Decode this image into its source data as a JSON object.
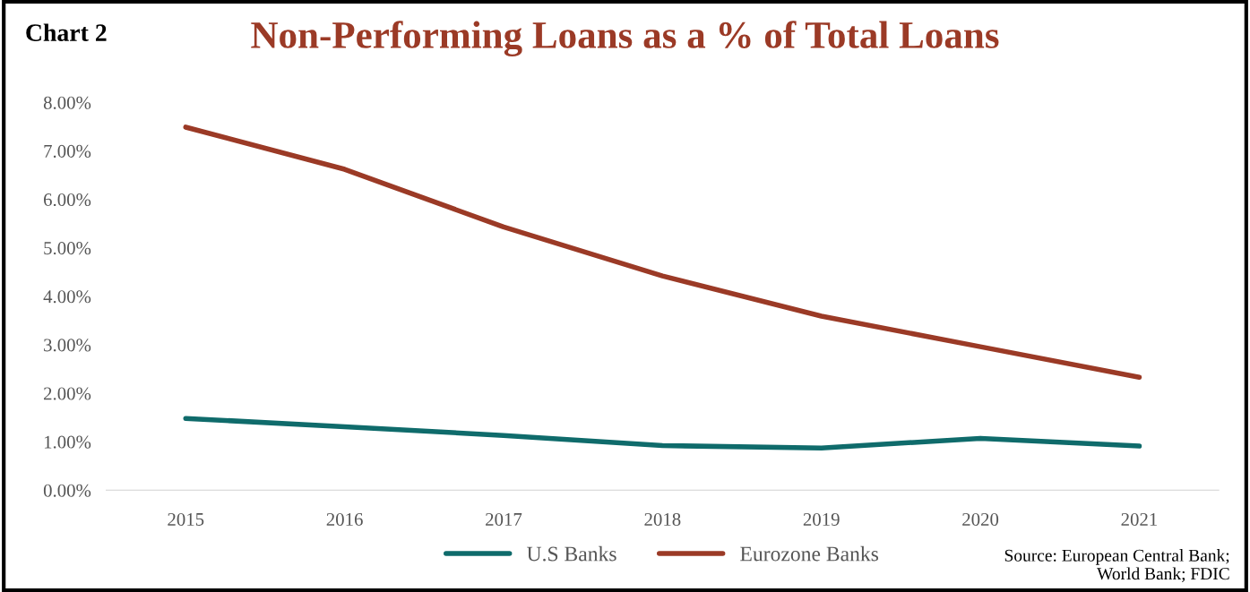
{
  "chart_data": {
    "type": "line",
    "title": "Non-Performing Loans as a % of Total Loans",
    "categories": [
      "2015",
      "2016",
      "2017",
      "2018",
      "2019",
      "2020",
      "2021"
    ],
    "series": [
      {
        "name": "U.S Banks",
        "color": "#0f6b6b",
        "values": [
          1.48,
          1.31,
          1.13,
          0.92,
          0.87,
          1.07,
          0.91
        ]
      },
      {
        "name": "Eurozone Banks",
        "color": "#9b3a26",
        "values": [
          7.49,
          6.62,
          5.43,
          4.42,
          3.59,
          2.96,
          2.33
        ]
      }
    ],
    "ylim": [
      0,
      8
    ],
    "yticks": [
      {
        "value": 0,
        "label": "0.00%"
      },
      {
        "value": 1,
        "label": "1.00%"
      },
      {
        "value": 2,
        "label": "2.00%"
      },
      {
        "value": 3,
        "label": "3.00%"
      },
      {
        "value": 4,
        "label": "4.00%"
      },
      {
        "value": 5,
        "label": "5.00%"
      },
      {
        "value": 6,
        "label": "6.00%"
      },
      {
        "value": 7,
        "label": "7.00%"
      },
      {
        "value": 8,
        "label": "8.00%"
      }
    ],
    "grid": false,
    "legend": "bottom",
    "marker": "none",
    "line_style": "solid",
    "annotations": [
      "Chart 2",
      "Source: European Central Bank;\nWorld Bank; FDIC"
    ]
  }
}
